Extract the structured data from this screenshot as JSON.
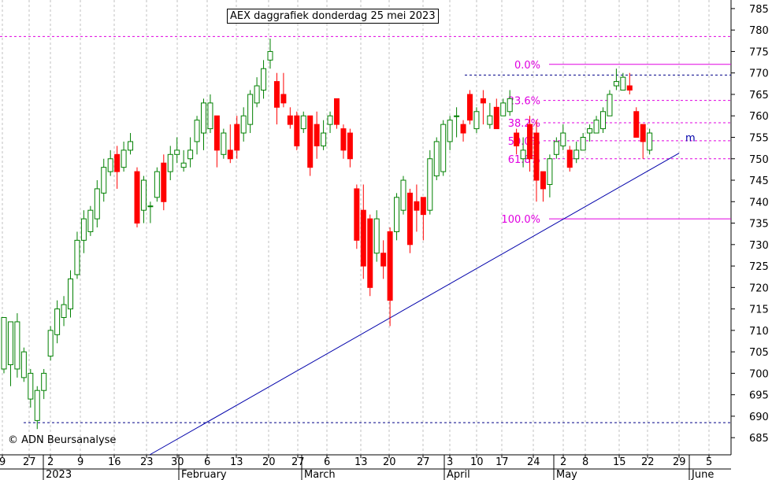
{
  "title": "AEX daggrafiek donderdag 25 mei 2023",
  "copyright": "© ADN Beursanalyse",
  "colors": {
    "up": "#008000",
    "down": "#ff0000",
    "fib": "#e000e0",
    "trend": "#0000aa",
    "dotted": "#000088",
    "grid": "#c0c0c0"
  },
  "chart_data": {
    "type": "candlestick",
    "y_ticks": [
      685,
      690,
      695,
      700,
      705,
      710,
      715,
      720,
      725,
      730,
      735,
      740,
      745,
      750,
      755,
      760,
      765,
      770,
      775,
      780,
      785
    ],
    "ylim": [
      681,
      787
    ],
    "x_ticks": [
      "9",
      "27",
      "2",
      "9",
      "16",
      "23",
      "30",
      "6",
      "13",
      "20",
      "27",
      "6",
      "13",
      "20",
      "27",
      "3",
      "10",
      "17",
      "24",
      "2",
      "8",
      "15",
      "22",
      "29",
      "5"
    ],
    "month_labels": [
      "2023",
      "February",
      "March",
      "April",
      "May",
      "June"
    ],
    "fibonacci": [
      {
        "label": "0.0%",
        "value": 772.0
      },
      {
        "label": "23.6%",
        "value": 763.6
      },
      {
        "label": "38.2%",
        "value": 758.4
      },
      {
        "label": "50.0%",
        "value": 754.2
      },
      {
        "label": "61.8%",
        "value": 750.0
      },
      {
        "label": "100.0%",
        "value": 736.0
      }
    ],
    "dotted_levels": [
      778.5,
      769.5,
      688.5
    ],
    "trendline_label": "m",
    "candles": [
      [
        0,
        712,
        700,
        701,
        713
      ],
      [
        1,
        711,
        697,
        702,
        712
      ],
      [
        2,
        714,
        699,
        701,
        712
      ],
      [
        3,
        706,
        698,
        699,
        705
      ],
      [
        4,
        701,
        692,
        694,
        700
      ],
      [
        5,
        697,
        687,
        689,
        696
      ],
      [
        6,
        701,
        694,
        696,
        700
      ],
      [
        7,
        711,
        703,
        704,
        710
      ],
      [
        8,
        717,
        707,
        709,
        715
      ],
      [
        9,
        718,
        711,
        713,
        716
      ],
      [
        10,
        724,
        713,
        715,
        722
      ],
      [
        11,
        733,
        722,
        723,
        731
      ],
      [
        12,
        738,
        728,
        731,
        736
      ],
      [
        13,
        739,
        732,
        733,
        738
      ],
      [
        14,
        745,
        734,
        736,
        743
      ],
      [
        15,
        750,
        740,
        742,
        748
      ],
      [
        16,
        752,
        746,
        747,
        750
      ],
      [
        17,
        753,
        743,
        751,
        747
      ],
      [
        18,
        754,
        747,
        748,
        752
      ],
      [
        19,
        756,
        751,
        752,
        754
      ],
      [
        20,
        748,
        734,
        747,
        735
      ],
      [
        21,
        746,
        735,
        738,
        745
      ],
      [
        22,
        740,
        735,
        739,
        739
      ],
      [
        23,
        748,
        740,
        741,
        747
      ],
      [
        24,
        751,
        738,
        749,
        740
      ],
      [
        25,
        753,
        745,
        747,
        751
      ],
      [
        26,
        755,
        749,
        751,
        752
      ],
      [
        27,
        752,
        747,
        748,
        749
      ],
      [
        28,
        755,
        748,
        750,
        752
      ],
      [
        29,
        760,
        751,
        754,
        759
      ],
      [
        30,
        764,
        752,
        756,
        763
      ],
      [
        31,
        765,
        756,
        757,
        763
      ],
      [
        32,
        760,
        748,
        760,
        752
      ],
      [
        33,
        757,
        750,
        751,
        756
      ],
      [
        34,
        758,
        749,
        752,
        750
      ],
      [
        35,
        760,
        750,
        758,
        752
      ],
      [
        36,
        762,
        754,
        756,
        760
      ],
      [
        37,
        766,
        756,
        758,
        765
      ],
      [
        38,
        769,
        762,
        763,
        767
      ],
      [
        39,
        773,
        764,
        766,
        771
      ],
      [
        40,
        778,
        771,
        773,
        775
      ],
      [
        41,
        770,
        758,
        768,
        762
      ],
      [
        42,
        770,
        762,
        765,
        763
      ],
      [
        43,
        762,
        757,
        760,
        758
      ],
      [
        44,
        761,
        752,
        760,
        753
      ],
      [
        45,
        761,
        756,
        757,
        760
      ],
      [
        46,
        760,
        746,
        760,
        748
      ],
      [
        47,
        761,
        750,
        758,
        753
      ],
      [
        48,
        759,
        752,
        753,
        756
      ],
      [
        49,
        761,
        756,
        758,
        760
      ],
      [
        50,
        764,
        757,
        764,
        758
      ],
      [
        51,
        758,
        750,
        757,
        752
      ],
      [
        52,
        757,
        748,
        756,
        750
      ],
      [
        53,
        744,
        729,
        743,
        731
      ],
      [
        54,
        744,
        722,
        738,
        725
      ],
      [
        55,
        737,
        718,
        736,
        720
      ],
      [
        56,
        738,
        726,
        728,
        736
      ],
      [
        57,
        731,
        722,
        728,
        725
      ],
      [
        58,
        734,
        711,
        733,
        717
      ],
      [
        59,
        742,
        731,
        733,
        741
      ],
      [
        60,
        746,
        737,
        738,
        745
      ],
      [
        61,
        743,
        728,
        742,
        730
      ],
      [
        62,
        744,
        733,
        740,
        738
      ],
      [
        63,
        741,
        731,
        741,
        737
      ],
      [
        64,
        752,
        737,
        738,
        750
      ],
      [
        65,
        755,
        745,
        746,
        754
      ],
      [
        66,
        759,
        746,
        747,
        758
      ],
      [
        67,
        760,
        752,
        754,
        759
      ],
      [
        68,
        762,
        755,
        760,
        760
      ],
      [
        69,
        759,
        754,
        758,
        756
      ],
      [
        70,
        766,
        758,
        765,
        759
      ],
      [
        71,
        762,
        756,
        757,
        761
      ],
      [
        72,
        766,
        758,
        764,
        763
      ],
      [
        73,
        763,
        757,
        758,
        760
      ],
      [
        74,
        764,
        757,
        762,
        757
      ],
      [
        75,
        764,
        760,
        760,
        763
      ],
      [
        76,
        766,
        760,
        761,
        764
      ],
      [
        77,
        757,
        751,
        756,
        753
      ],
      [
        78,
        755,
        748,
        750,
        752
      ],
      [
        79,
        760,
        747,
        758,
        750
      ],
      [
        80,
        759,
        740,
        756,
        745
      ],
      [
        81,
        747,
        740,
        747,
        743
      ],
      [
        82,
        751,
        741,
        744,
        750
      ],
      [
        83,
        755,
        750,
        751,
        754
      ],
      [
        84,
        758,
        752,
        753,
        756
      ],
      [
        85,
        753,
        747,
        752,
        748
      ],
      [
        86,
        754,
        749,
        750,
        752
      ],
      [
        87,
        756,
        752,
        752,
        755
      ],
      [
        88,
        758,
        754,
        756,
        757
      ],
      [
        89,
        760,
        756,
        756,
        759
      ],
      [
        90,
        762,
        756,
        757,
        761
      ],
      [
        91,
        766,
        760,
        760,
        765
      ],
      [
        92,
        771,
        766,
        767,
        768
      ],
      [
        93,
        770,
        766,
        766,
        769
      ],
      [
        94,
        770,
        765,
        767,
        766
      ],
      [
        95,
        762,
        755,
        761,
        755
      ],
      [
        96,
        758,
        750,
        758,
        754
      ],
      [
        97,
        757,
        751,
        752,
        756
      ]
    ]
  }
}
